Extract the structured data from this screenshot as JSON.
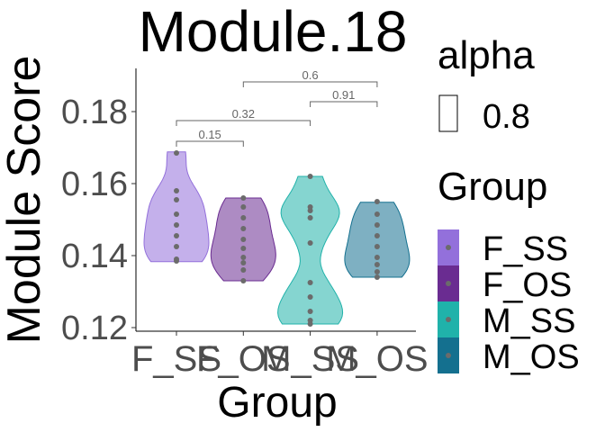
{
  "chart_data": {
    "type": "violin",
    "title": "Module.18",
    "xlabel": "Group",
    "ylabel": "Module Score",
    "categories": [
      "F_SS",
      "F_OS",
      "M_SS",
      "M_OS"
    ],
    "ylim": [
      0.119,
      0.192
    ],
    "yticks": [
      "0.12",
      "0.14",
      "0.16",
      "0.18"
    ],
    "ytick_values": [
      0.12,
      0.14,
      0.16,
      0.18
    ],
    "grid": false,
    "series": [
      {
        "name": "F_SS",
        "color": "#9370DB",
        "points": [
          0.1385,
          0.139,
          0.1425,
          0.1455,
          0.1485,
          0.1515,
          0.1555,
          0.158,
          0.1685
        ],
        "range": [
          0.1383,
          0.1688
        ]
      },
      {
        "name": "F_OS",
        "color": "#6A2C91",
        "points": [
          0.133,
          0.136,
          0.138,
          0.1395,
          0.142,
          0.1445,
          0.1475,
          0.1505,
          0.1535,
          0.156
        ],
        "range": [
          0.133,
          0.156
        ]
      },
      {
        "name": "M_SS",
        "color": "#20B2AA",
        "points": [
          0.121,
          0.122,
          0.1245,
          0.1285,
          0.1325,
          0.1435,
          0.1505,
          0.1525,
          0.1535,
          0.162
        ],
        "range": [
          0.121,
          0.162
        ]
      },
      {
        "name": "M_OS",
        "color": "#14708F",
        "points": [
          0.134,
          0.1355,
          0.1375,
          0.1395,
          0.1425,
          0.1455,
          0.1485,
          0.1515,
          0.155
        ],
        "range": [
          0.134,
          0.1548
        ]
      }
    ],
    "comparisons": [
      {
        "groups": [
          "F_SS",
          "F_OS"
        ],
        "label": "0.15"
      },
      {
        "groups": [
          "F_SS",
          "M_SS"
        ],
        "label": "0.32"
      },
      {
        "groups": [
          "M_SS",
          "M_OS"
        ],
        "label": "0.91"
      },
      {
        "groups": [
          "F_OS",
          "M_OS"
        ],
        "label": "0.6"
      }
    ],
    "legend": {
      "placement": "right",
      "alpha_title": "alpha",
      "alpha_value": "0.8",
      "group_title": "Group",
      "items": [
        "F_SS",
        "F_OS",
        "M_SS",
        "M_OS"
      ]
    }
  }
}
